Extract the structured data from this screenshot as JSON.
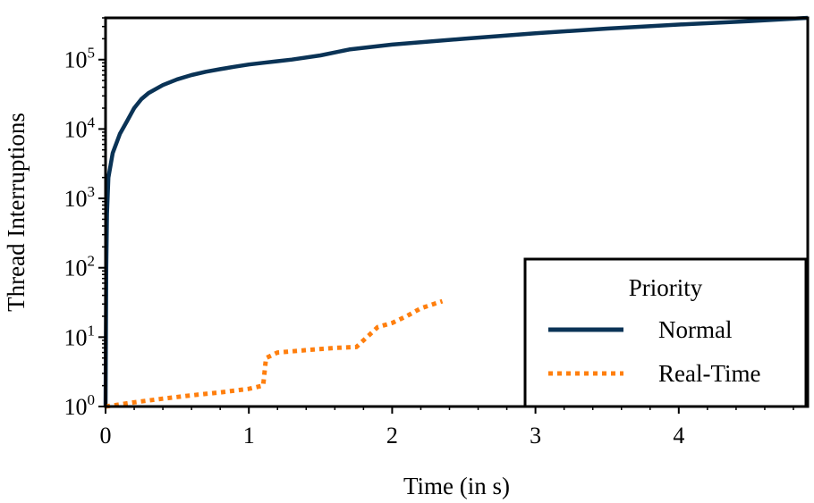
{
  "chart_data": {
    "type": "line",
    "xlabel": "Time (in s)",
    "ylabel": "Thread Interruptions",
    "xlim": [
      0,
      4.9
    ],
    "ylim": [
      1,
      400000
    ],
    "yscale": "log",
    "grid": false,
    "x_ticks": [
      "0",
      "1",
      "2",
      "3",
      "4"
    ],
    "y_ticks": [
      {
        "base": "10",
        "exp": "0"
      },
      {
        "base": "10",
        "exp": "1"
      },
      {
        "base": "10",
        "exp": "2"
      },
      {
        "base": "10",
        "exp": "3"
      },
      {
        "base": "10",
        "exp": "4"
      },
      {
        "base": "10",
        "exp": "5"
      }
    ],
    "legend": {
      "title": "Priority",
      "placement": "lower-right",
      "entries": [
        "Normal",
        "Real-Time"
      ]
    },
    "series": [
      {
        "name": "Normal",
        "color": "#0a3356",
        "style": "solid",
        "x": [
          0,
          0.005,
          0.01,
          0.02,
          0.05,
          0.1,
          0.15,
          0.2,
          0.25,
          0.3,
          0.4,
          0.5,
          0.6,
          0.7,
          0.8,
          0.9,
          1.0,
          1.1,
          1.2,
          1.3,
          1.5,
          1.7,
          2.0,
          2.5,
          3.0,
          3.5,
          4.0,
          4.5,
          4.9
        ],
        "values": [
          1,
          100,
          600,
          2000,
          4500,
          8500,
          13000,
          20000,
          27000,
          33000,
          43000,
          52000,
          60000,
          67000,
          73000,
          79000,
          85000,
          90000,
          95000,
          100000,
          115000,
          140000,
          165000,
          200000,
          240000,
          280000,
          320000,
          360000,
          400000
        ]
      },
      {
        "name": "Real-Time",
        "color": "#ff7f0e",
        "style": "dotted",
        "x": [
          0,
          0.2,
          0.4,
          0.6,
          0.8,
          1.0,
          1.1,
          1.12,
          1.2,
          1.4,
          1.6,
          1.75,
          1.8,
          1.9,
          2.0,
          2.1,
          2.2,
          2.35
        ],
        "values": [
          1,
          1.15,
          1.3,
          1.45,
          1.6,
          1.8,
          2,
          5,
          6,
          6.5,
          7,
          7.2,
          9,
          14,
          16,
          20,
          26,
          33
        ]
      }
    ]
  }
}
